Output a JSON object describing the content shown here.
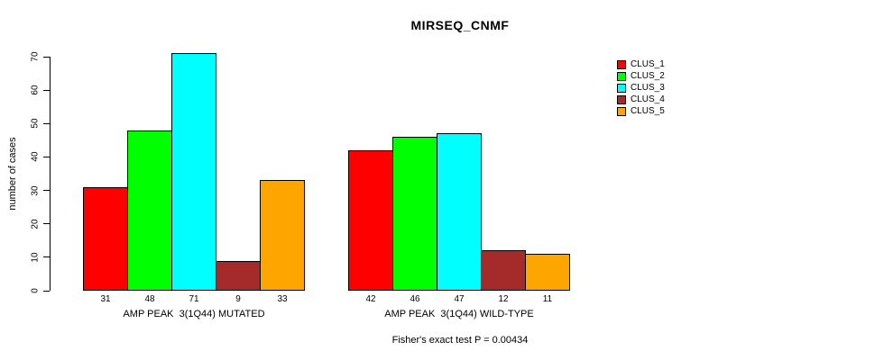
{
  "chart_data": {
    "type": "bar",
    "title": "MIRSEQ_CNMF",
    "ylabel": "number of cases",
    "annotation": "Fisher's exact test P = 0.00434",
    "categories": [
      "AMP PEAK  3(1Q44) MUTATED",
      "AMP PEAK  3(1Q44) WILD-TYPE"
    ],
    "series": [
      {
        "name": "CLUS_1",
        "color": "#FF0000",
        "values": [
          31,
          42
        ]
      },
      {
        "name": "CLUS_2",
        "color": "#00FF00",
        "values": [
          48,
          46
        ]
      },
      {
        "name": "CLUS_3",
        "color": "#00FFFF",
        "values": [
          71,
          47
        ]
      },
      {
        "name": "CLUS_4",
        "color": "#A52A2A",
        "values": [
          9,
          12
        ]
      },
      {
        "name": "CLUS_5",
        "color": "#FFA500",
        "values": [
          33,
          11
        ]
      }
    ],
    "ylim": [
      0,
      70
    ],
    "yticks": [
      0,
      10,
      20,
      30,
      40,
      50,
      60,
      70
    ],
    "grid": false,
    "bar_value_labels": true,
    "legend_position": "right"
  }
}
